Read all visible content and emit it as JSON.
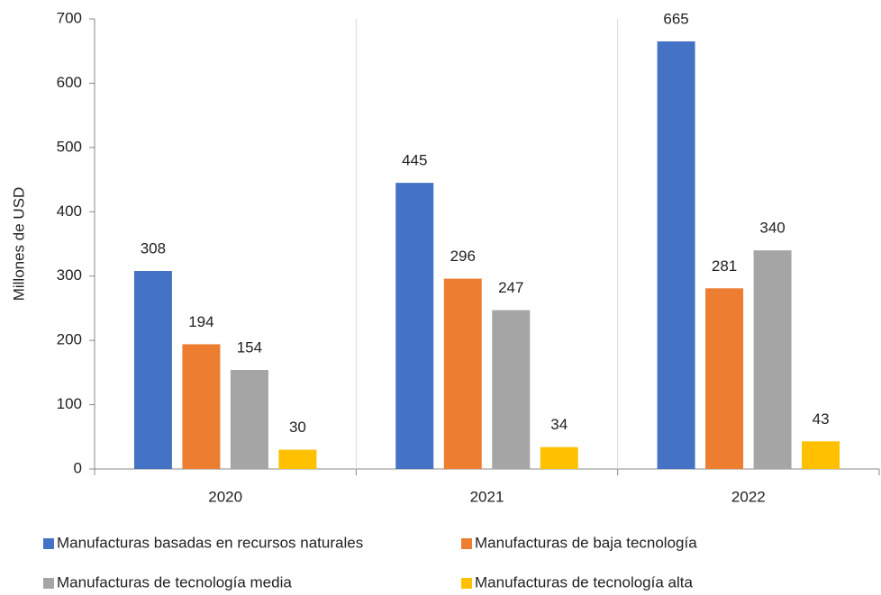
{
  "chart_data": {
    "type": "bar",
    "y_label": "Millones de USD",
    "categories": [
      "2020",
      "2021",
      "2022"
    ],
    "series": [
      {
        "name": "Manufacturas basadas en recursos naturales",
        "color": "#4472c4",
        "values": [
          308,
          445,
          665
        ]
      },
      {
        "name": "Manufacturas de baja tecnología",
        "color": "#ed7d31",
        "values": [
          194,
          296,
          281
        ]
      },
      {
        "name": "Manufacturas de tecnología media",
        "color": "#a5a5a5",
        "values": [
          154,
          247,
          340
        ]
      },
      {
        "name": "Manufacturas de tecnología alta",
        "color": "#ffc000",
        "values": [
          30,
          34,
          43
        ]
      }
    ],
    "ylim": [
      0,
      700
    ],
    "yticks": [
      0,
      100,
      200,
      300,
      400,
      500,
      600,
      700
    ],
    "legend": "bottom"
  }
}
